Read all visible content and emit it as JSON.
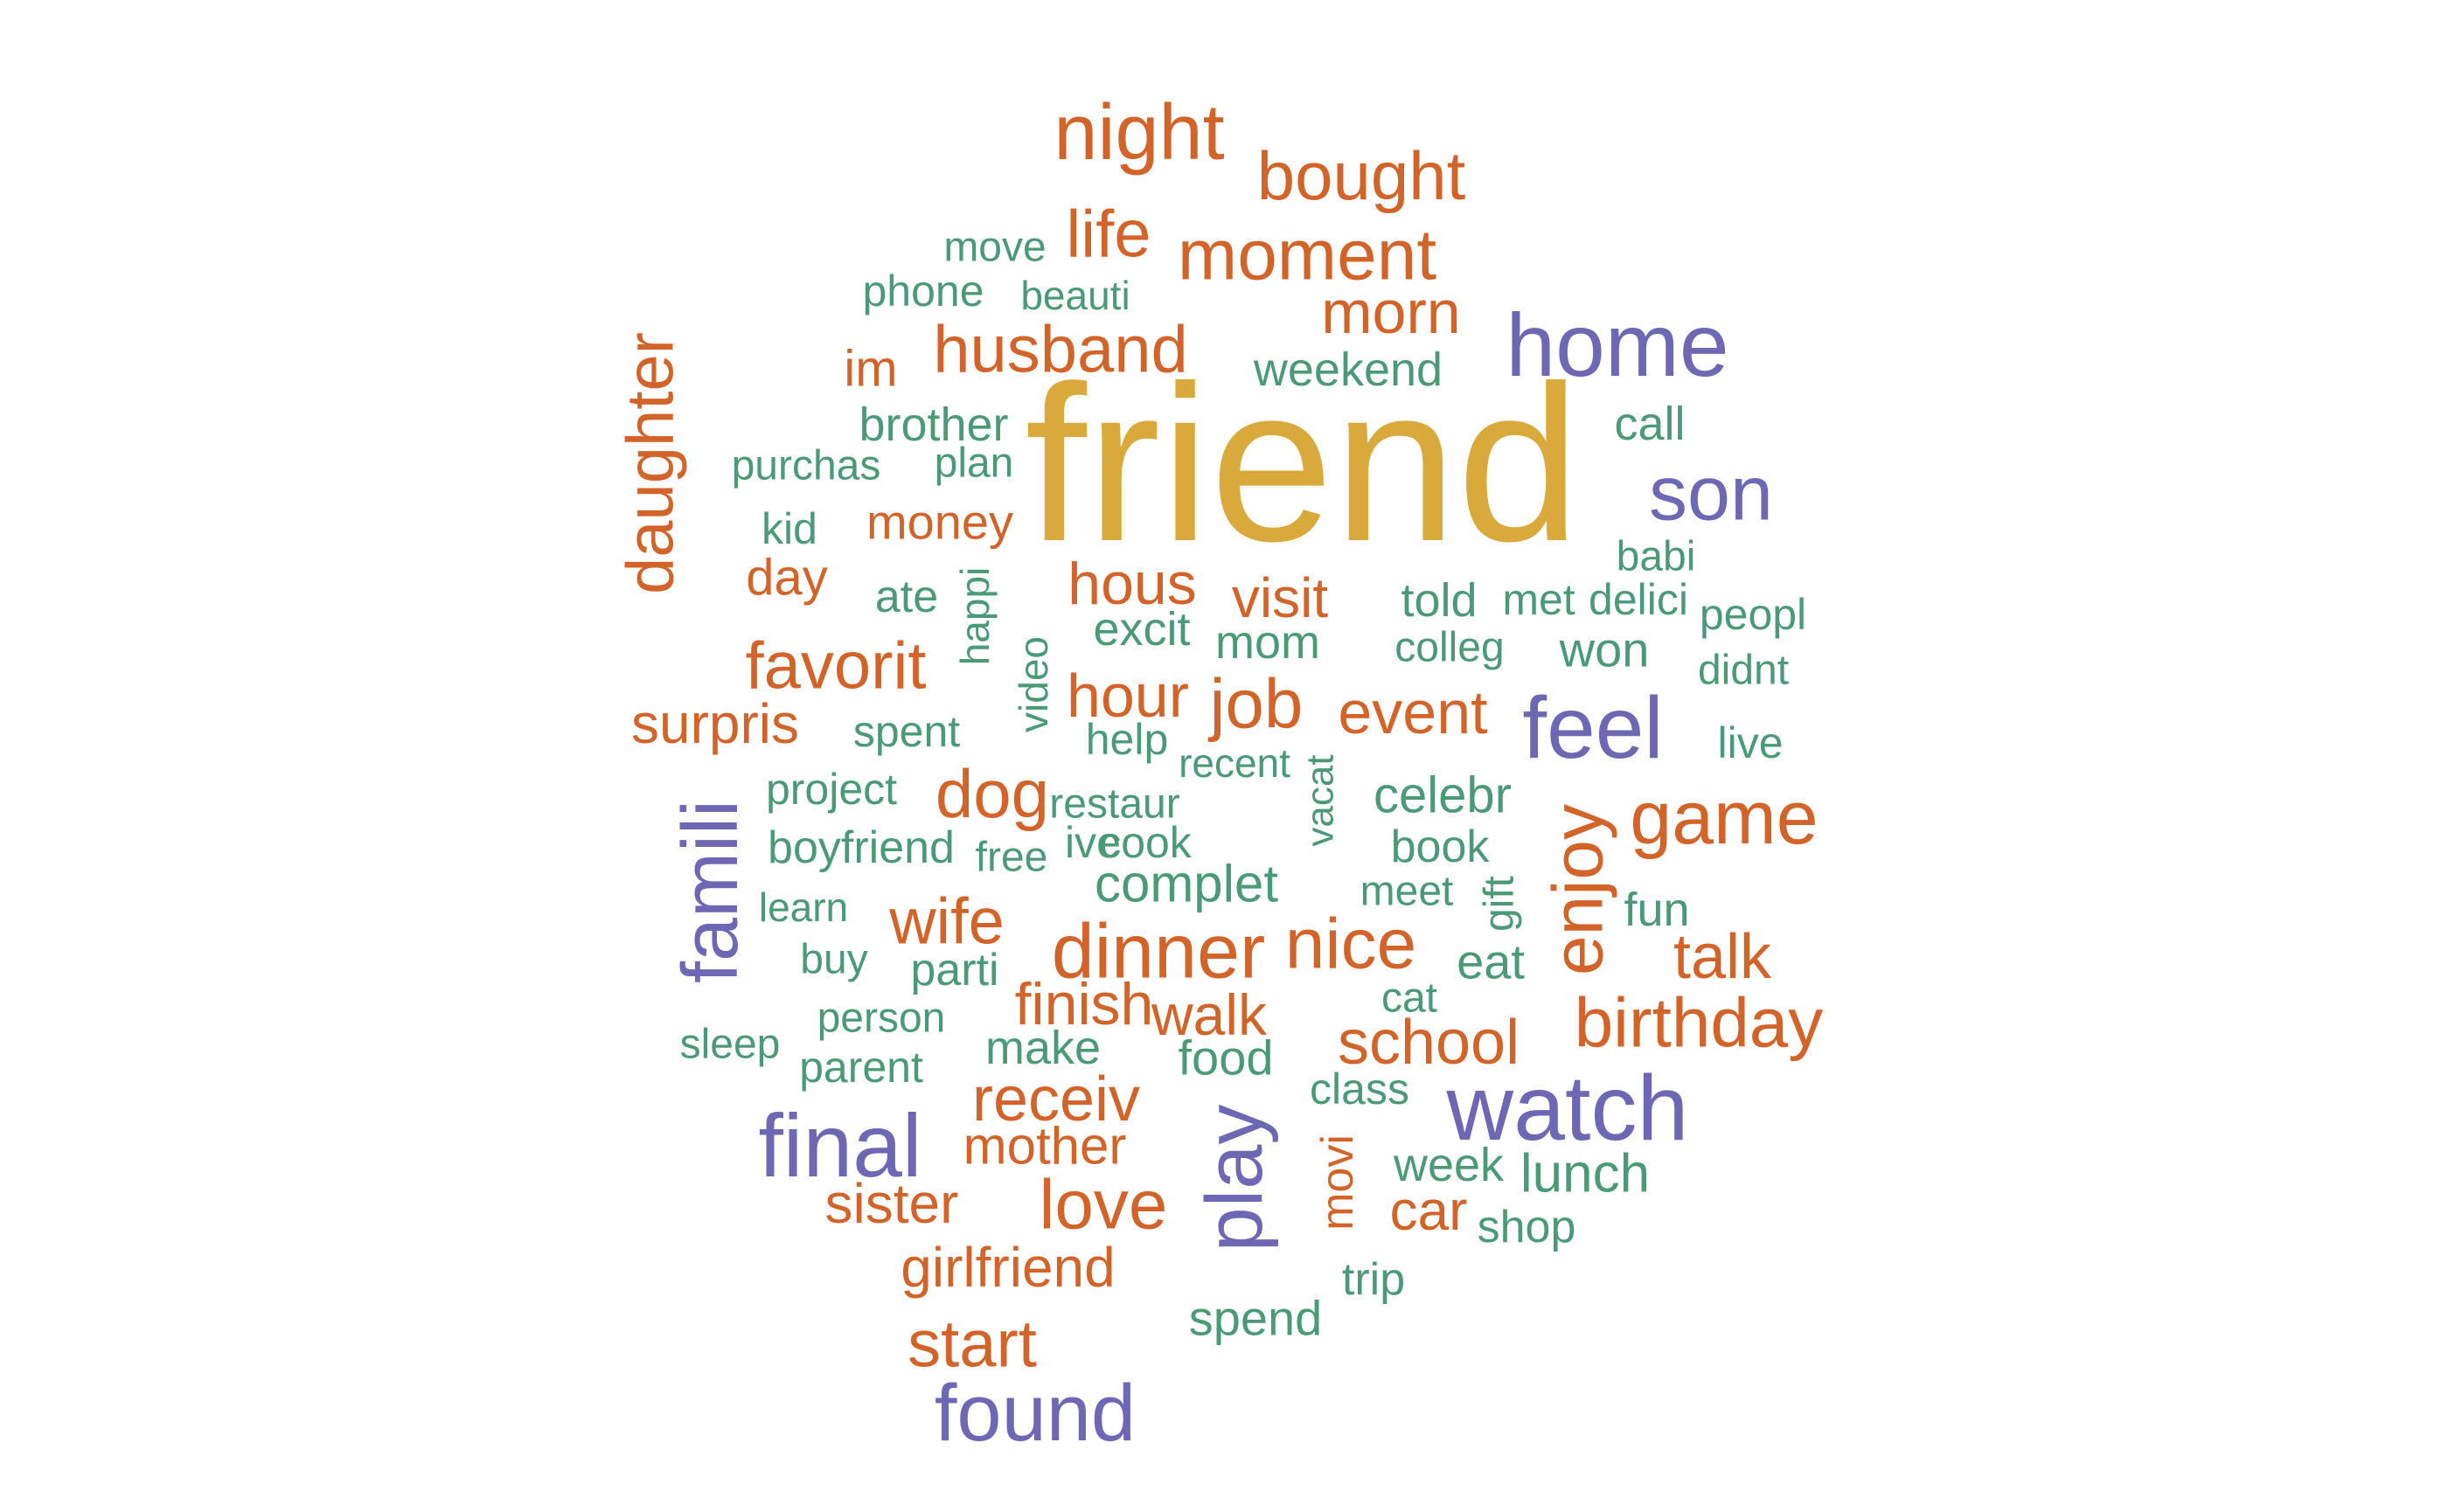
{
  "palette": {
    "gold": "#DAA93B",
    "orange": "#D2642A",
    "purple": "#6E67B3",
    "green": "#4A9A78"
  },
  "words": [
    {
      "text": "friend",
      "color": "gold",
      "rotate": false
    },
    {
      "text": "night",
      "color": "orange",
      "rotate": false
    },
    {
      "text": "bought",
      "color": "orange",
      "rotate": false
    },
    {
      "text": "life",
      "color": "orange",
      "rotate": false
    },
    {
      "text": "move",
      "color": "green",
      "rotate": false
    },
    {
      "text": "moment",
      "color": "orange",
      "rotate": false
    },
    {
      "text": "phone",
      "color": "green",
      "rotate": false
    },
    {
      "text": "beauti",
      "color": "green",
      "rotate": false
    },
    {
      "text": "morn",
      "color": "orange",
      "rotate": false
    },
    {
      "text": "home",
      "color": "purple",
      "rotate": false
    },
    {
      "text": "husband",
      "color": "orange",
      "rotate": false
    },
    {
      "text": "im",
      "color": "orange",
      "rotate": false
    },
    {
      "text": "weekend",
      "color": "green",
      "rotate": false
    },
    {
      "text": "daughter",
      "color": "orange",
      "rotate": true
    },
    {
      "text": "brother",
      "color": "green",
      "rotate": false
    },
    {
      "text": "call",
      "color": "green",
      "rotate": false
    },
    {
      "text": "purchas",
      "color": "green",
      "rotate": false
    },
    {
      "text": "plan",
      "color": "green",
      "rotate": false
    },
    {
      "text": "son",
      "color": "purple",
      "rotate": false
    },
    {
      "text": "kid",
      "color": "green",
      "rotate": false
    },
    {
      "text": "money",
      "color": "orange",
      "rotate": false
    },
    {
      "text": "babi",
      "color": "green",
      "rotate": false
    },
    {
      "text": "day",
      "color": "orange",
      "rotate": false
    },
    {
      "text": "hous",
      "color": "orange",
      "rotate": false
    },
    {
      "text": "visit",
      "color": "orange",
      "rotate": false
    },
    {
      "text": "ate",
      "color": "green",
      "rotate": false
    },
    {
      "text": "happi",
      "color": "green",
      "rotate": true
    },
    {
      "text": "told",
      "color": "green",
      "rotate": false
    },
    {
      "text": "met",
      "color": "green",
      "rotate": false
    },
    {
      "text": "delici",
      "color": "green",
      "rotate": false
    },
    {
      "text": "peopl",
      "color": "green",
      "rotate": false
    },
    {
      "text": "excit",
      "color": "green",
      "rotate": false
    },
    {
      "text": "mom",
      "color": "green",
      "rotate": false
    },
    {
      "text": "colleg",
      "color": "green",
      "rotate": false
    },
    {
      "text": "won",
      "color": "green",
      "rotate": false
    },
    {
      "text": "favorit",
      "color": "orange",
      "rotate": false
    },
    {
      "text": "video",
      "color": "green",
      "rotate": true
    },
    {
      "text": "didnt",
      "color": "green",
      "rotate": false
    },
    {
      "text": "hour",
      "color": "orange",
      "rotate": false
    },
    {
      "text": "job",
      "color": "orange",
      "rotate": false
    },
    {
      "text": "event",
      "color": "orange",
      "rotate": false
    },
    {
      "text": "feel",
      "color": "purple",
      "rotate": false
    },
    {
      "text": "surpris",
      "color": "orange",
      "rotate": false
    },
    {
      "text": "spent",
      "color": "green",
      "rotate": false
    },
    {
      "text": "help",
      "color": "green",
      "rotate": false
    },
    {
      "text": "live",
      "color": "green",
      "rotate": false
    },
    {
      "text": "recent",
      "color": "green",
      "rotate": false
    },
    {
      "text": "famili",
      "color": "purple",
      "rotate": true
    },
    {
      "text": "project",
      "color": "green",
      "rotate": false
    },
    {
      "text": "dog",
      "color": "orange",
      "rotate": false
    },
    {
      "text": "vacat",
      "color": "green",
      "rotate": true
    },
    {
      "text": "celebr",
      "color": "green",
      "rotate": false
    },
    {
      "text": "enjoy",
      "color": "orange",
      "rotate": true
    },
    {
      "text": "restaur",
      "color": "green",
      "rotate": false
    },
    {
      "text": "game",
      "color": "orange",
      "rotate": false
    },
    {
      "text": "boyfriend",
      "color": "green",
      "rotate": false
    },
    {
      "text": "free",
      "color": "green",
      "rotate": false
    },
    {
      "text": "ive",
      "color": "green",
      "rotate": false
    },
    {
      "text": "cook",
      "color": "green",
      "rotate": false
    },
    {
      "text": "book",
      "color": "green",
      "rotate": false
    },
    {
      "text": "complet",
      "color": "green",
      "rotate": false
    },
    {
      "text": "meet",
      "color": "green",
      "rotate": false
    },
    {
      "text": "gift",
      "color": "green",
      "rotate": true
    },
    {
      "text": "learn",
      "color": "green",
      "rotate": false
    },
    {
      "text": "wife",
      "color": "orange",
      "rotate": false
    },
    {
      "text": "fun",
      "color": "green",
      "rotate": false
    },
    {
      "text": "dinner",
      "color": "orange",
      "rotate": false
    },
    {
      "text": "nice",
      "color": "orange",
      "rotate": false
    },
    {
      "text": "buy",
      "color": "green",
      "rotate": false
    },
    {
      "text": "parti",
      "color": "green",
      "rotate": false
    },
    {
      "text": "eat",
      "color": "green",
      "rotate": false
    },
    {
      "text": "talk",
      "color": "orange",
      "rotate": false
    },
    {
      "text": "finish",
      "color": "orange",
      "rotate": false
    },
    {
      "text": "walk",
      "color": "orange",
      "rotate": false
    },
    {
      "text": "cat",
      "color": "green",
      "rotate": false
    },
    {
      "text": "person",
      "color": "green",
      "rotate": false
    },
    {
      "text": "birthday",
      "color": "orange",
      "rotate": false
    },
    {
      "text": "sleep",
      "color": "green",
      "rotate": false
    },
    {
      "text": "make",
      "color": "green",
      "rotate": false
    },
    {
      "text": "school",
      "color": "orange",
      "rotate": false
    },
    {
      "text": "food",
      "color": "green",
      "rotate": false
    },
    {
      "text": "parent",
      "color": "green",
      "rotate": false
    },
    {
      "text": "class",
      "color": "green",
      "rotate": false
    },
    {
      "text": "receiv",
      "color": "orange",
      "rotate": false
    },
    {
      "text": "watch",
      "color": "purple",
      "rotate": false
    },
    {
      "text": "final",
      "color": "purple",
      "rotate": false
    },
    {
      "text": "mother",
      "color": "orange",
      "rotate": false
    },
    {
      "text": "play",
      "color": "purple",
      "rotate": true
    },
    {
      "text": "movi",
      "color": "orange",
      "rotate": true
    },
    {
      "text": "week",
      "color": "green",
      "rotate": false
    },
    {
      "text": "lunch",
      "color": "green",
      "rotate": false
    },
    {
      "text": "sister",
      "color": "orange",
      "rotate": false
    },
    {
      "text": "love",
      "color": "orange",
      "rotate": false
    },
    {
      "text": "car",
      "color": "orange",
      "rotate": false
    },
    {
      "text": "shop",
      "color": "green",
      "rotate": false
    },
    {
      "text": "girlfriend",
      "color": "orange",
      "rotate": false
    },
    {
      "text": "trip",
      "color": "green",
      "rotate": false
    },
    {
      "text": "spend",
      "color": "green",
      "rotate": false
    },
    {
      "text": "start",
      "color": "orange",
      "rotate": false
    },
    {
      "text": "found",
      "color": "purple",
      "rotate": false
    }
  ]
}
